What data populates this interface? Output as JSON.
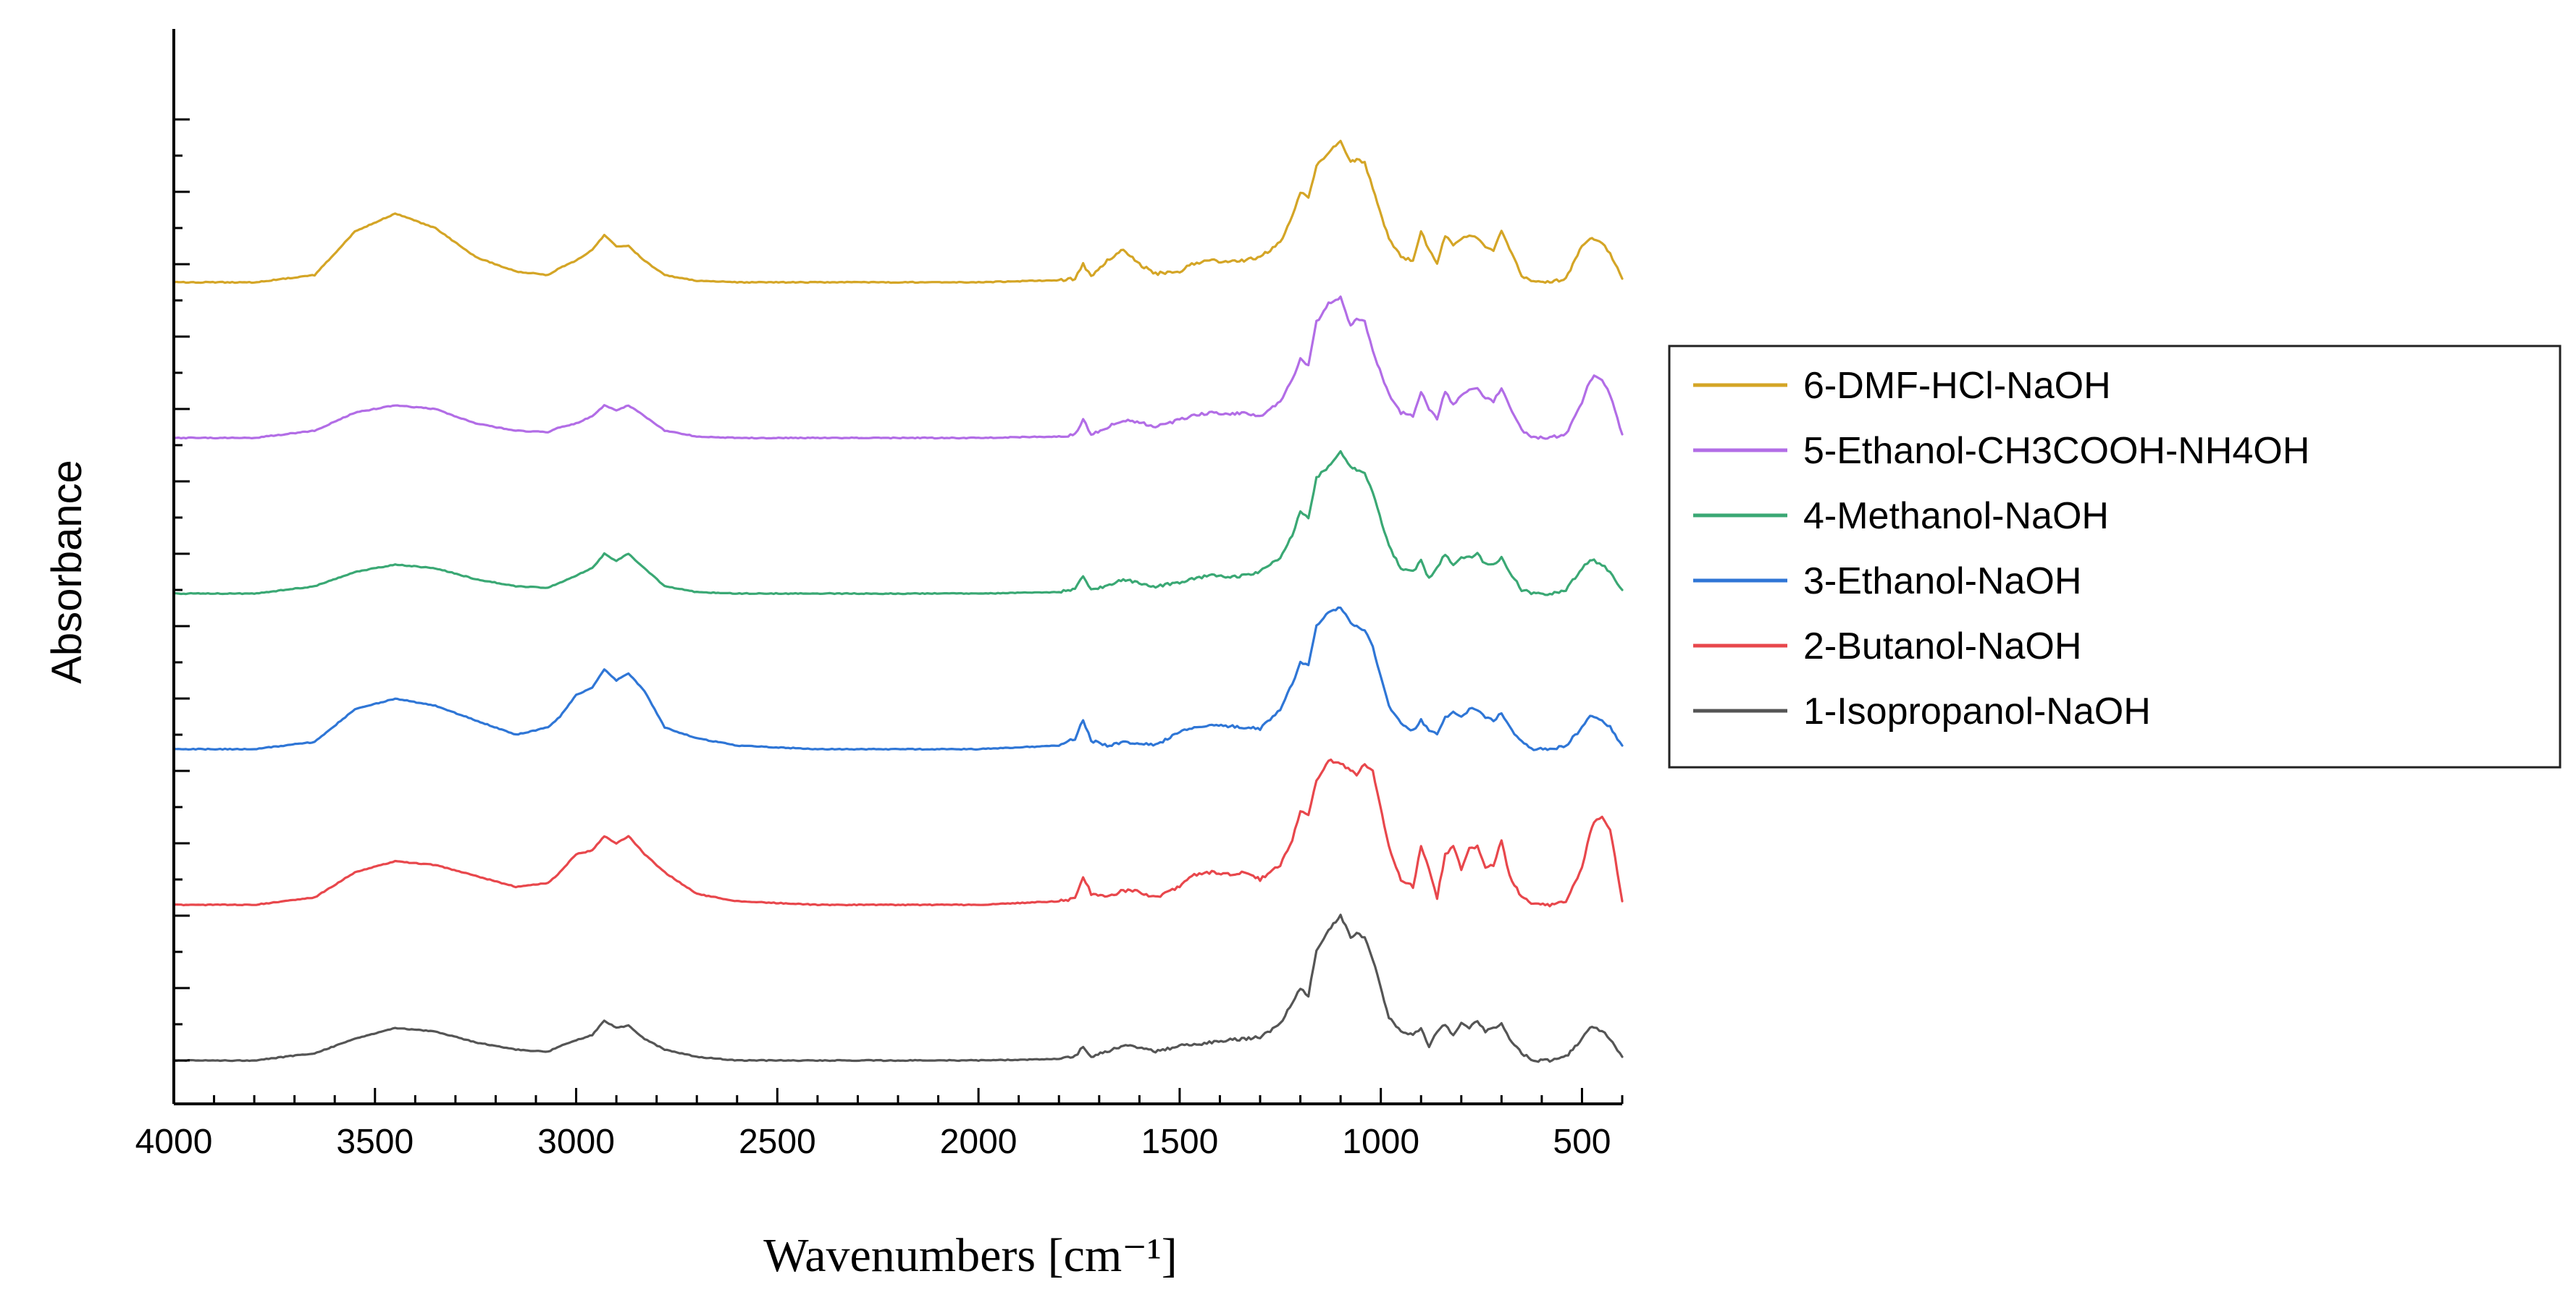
{
  "chart_data": {
    "type": "line",
    "title": "",
    "xlabel": "Wavenumbers [cm⁻¹]",
    "ylabel": "Absorbance",
    "xlim": [
      4000,
      400
    ],
    "x_reversed": true,
    "ylim": [
      0,
      13.3
    ],
    "y_tick_labels_shown": false,
    "x_ticks": [
      4000,
      3500,
      3000,
      2500,
      2000,
      1500,
      1000,
      500
    ],
    "x_tick_labels": [
      "4000",
      "3500",
      "3000",
      "2500",
      "2000",
      "1500",
      "1000",
      "500"
    ],
    "legend_position": "right",
    "peaks_cm1": [
      3450,
      2930,
      2870,
      1740,
      1640,
      1200,
      1100,
      1040,
      900,
      860,
      800,
      760,
      700,
      470
    ],
    "x": [
      4000,
      3800,
      3650,
      3550,
      3450,
      3350,
      3250,
      3150,
      3070,
      3040,
      3000,
      2960,
      2930,
      2900,
      2870,
      2830,
      2780,
      2700,
      2600,
      2400,
      2200,
      2000,
      1800,
      1760,
      1740,
      1720,
      1680,
      1640,
      1600,
      1560,
      1500,
      1470,
      1420,
      1380,
      1340,
      1300,
      1250,
      1220,
      1200,
      1180,
      1160,
      1130,
      1100,
      1075,
      1060,
      1040,
      1020,
      980,
      950,
      920,
      900,
      880,
      860,
      840,
      820,
      800,
      780,
      760,
      740,
      720,
      700,
      680,
      650,
      620,
      580,
      540,
      500,
      480,
      470,
      450,
      430,
      400
    ],
    "series": [
      {
        "name": "1-Isopropanol-NaOH",
        "color": "#555555",
        "offset": 0.0,
        "values": [
          0.0,
          0.0,
          0.1,
          0.3,
          0.45,
          0.4,
          0.25,
          0.15,
          0.12,
          0.2,
          0.28,
          0.35,
          0.55,
          0.45,
          0.48,
          0.3,
          0.15,
          0.05,
          0.0,
          0.0,
          0.0,
          0.0,
          0.02,
          0.05,
          0.2,
          0.06,
          0.12,
          0.2,
          0.18,
          0.12,
          0.2,
          0.22,
          0.25,
          0.28,
          0.3,
          0.32,
          0.5,
          0.8,
          1.0,
          0.9,
          1.5,
          1.8,
          2.0,
          1.7,
          1.75,
          1.7,
          1.4,
          0.6,
          0.4,
          0.35,
          0.45,
          0.2,
          0.4,
          0.5,
          0.35,
          0.5,
          0.45,
          0.55,
          0.4,
          0.45,
          0.5,
          0.3,
          0.1,
          0.0,
          0.0,
          0.05,
          0.3,
          0.45,
          0.45,
          0.4,
          0.3,
          0.05
        ]
      },
      {
        "name": "2-Butanol-NaOH",
        "color": "#e8474c",
        "offset": 2.15,
        "values": [
          0.0,
          0.0,
          0.1,
          0.45,
          0.6,
          0.55,
          0.4,
          0.25,
          0.3,
          0.45,
          0.7,
          0.75,
          0.95,
          0.85,
          0.95,
          0.7,
          0.45,
          0.15,
          0.05,
          0.0,
          0.0,
          0.0,
          0.05,
          0.08,
          0.4,
          0.15,
          0.1,
          0.2,
          0.18,
          0.1,
          0.25,
          0.4,
          0.45,
          0.42,
          0.45,
          0.35,
          0.55,
          0.9,
          1.3,
          1.25,
          1.7,
          2.0,
          1.95,
          1.85,
          1.8,
          1.95,
          1.85,
          0.8,
          0.35,
          0.25,
          0.8,
          0.5,
          0.1,
          0.7,
          0.8,
          0.5,
          0.8,
          0.8,
          0.5,
          0.55,
          0.9,
          0.4,
          0.1,
          0.0,
          0.0,
          0.05,
          0.5,
          1.0,
          1.15,
          1.2,
          1.05,
          0.05
        ]
      },
      {
        "name": "3-Ethanol-NaOH",
        "color": "#2f76d6",
        "offset": 4.3,
        "values": [
          0.0,
          0.0,
          0.1,
          0.55,
          0.7,
          0.6,
          0.4,
          0.2,
          0.3,
          0.45,
          0.75,
          0.85,
          1.1,
          0.95,
          1.05,
          0.8,
          0.3,
          0.15,
          0.05,
          0.0,
          0.0,
          0.0,
          0.05,
          0.15,
          0.4,
          0.12,
          0.05,
          0.1,
          0.08,
          0.05,
          0.25,
          0.3,
          0.35,
          0.32,
          0.3,
          0.28,
          0.55,
          0.9,
          1.2,
          1.15,
          1.7,
          1.9,
          1.95,
          1.75,
          1.7,
          1.65,
          1.4,
          0.6,
          0.35,
          0.25,
          0.4,
          0.25,
          0.2,
          0.45,
          0.5,
          0.45,
          0.55,
          0.55,
          0.45,
          0.4,
          0.5,
          0.3,
          0.1,
          0.0,
          0.0,
          0.05,
          0.3,
          0.45,
          0.45,
          0.4,
          0.3,
          0.05
        ]
      },
      {
        "name": "4-Methanol-NaOH",
        "color": "#3aa874",
        "offset": 6.45,
        "values": [
          0.0,
          0.0,
          0.1,
          0.3,
          0.4,
          0.35,
          0.2,
          0.1,
          0.08,
          0.15,
          0.25,
          0.35,
          0.55,
          0.45,
          0.55,
          0.35,
          0.1,
          0.02,
          0.0,
          0.0,
          0.0,
          0.0,
          0.02,
          0.05,
          0.25,
          0.05,
          0.1,
          0.2,
          0.15,
          0.1,
          0.15,
          0.2,
          0.25,
          0.22,
          0.25,
          0.3,
          0.5,
          0.8,
          1.15,
          1.05,
          1.6,
          1.75,
          1.95,
          1.75,
          1.7,
          1.65,
          1.4,
          0.65,
          0.35,
          0.3,
          0.45,
          0.2,
          0.35,
          0.55,
          0.4,
          0.5,
          0.5,
          0.55,
          0.4,
          0.4,
          0.5,
          0.3,
          0.05,
          0.0,
          0.0,
          0.05,
          0.35,
          0.45,
          0.45,
          0.4,
          0.3,
          0.05
        ]
      },
      {
        "name": "5-Ethanol-CH3COOH-NH4OH",
        "color": "#b26de6",
        "offset": 8.6,
        "values": [
          0.0,
          0.0,
          0.1,
          0.35,
          0.45,
          0.4,
          0.2,
          0.1,
          0.08,
          0.15,
          0.2,
          0.3,
          0.45,
          0.38,
          0.45,
          0.3,
          0.1,
          0.02,
          0.0,
          0.0,
          0.0,
          0.0,
          0.02,
          0.05,
          0.25,
          0.05,
          0.15,
          0.25,
          0.22,
          0.15,
          0.25,
          0.3,
          0.35,
          0.32,
          0.35,
          0.3,
          0.5,
          0.8,
          1.1,
          1.0,
          1.6,
          1.85,
          1.95,
          1.55,
          1.65,
          1.6,
          1.2,
          0.6,
          0.35,
          0.3,
          0.65,
          0.4,
          0.25,
          0.65,
          0.45,
          0.6,
          0.65,
          0.7,
          0.55,
          0.5,
          0.7,
          0.45,
          0.1,
          0.0,
          0.0,
          0.05,
          0.5,
          0.8,
          0.85,
          0.8,
          0.6,
          0.05
        ]
      },
      {
        "name": "6-DMF-HCl-NaOH",
        "color": "#d4a526",
        "offset": 10.75,
        "values": [
          0.0,
          0.0,
          0.1,
          0.7,
          0.95,
          0.75,
          0.35,
          0.15,
          0.1,
          0.2,
          0.3,
          0.45,
          0.65,
          0.5,
          0.5,
          0.3,
          0.1,
          0.02,
          0.0,
          0.0,
          0.0,
          0.0,
          0.03,
          0.05,
          0.25,
          0.08,
          0.3,
          0.45,
          0.25,
          0.12,
          0.15,
          0.25,
          0.3,
          0.28,
          0.3,
          0.35,
          0.55,
          0.9,
          1.25,
          1.15,
          1.6,
          1.8,
          1.95,
          1.65,
          1.7,
          1.65,
          1.3,
          0.6,
          0.35,
          0.3,
          0.7,
          0.45,
          0.25,
          0.65,
          0.5,
          0.6,
          0.65,
          0.6,
          0.5,
          0.45,
          0.7,
          0.45,
          0.1,
          0.0,
          0.0,
          0.05,
          0.5,
          0.6,
          0.6,
          0.55,
          0.4,
          0.05
        ]
      }
    ],
    "legend_order": [
      "6-DMF-HCl-NaOH",
      "5-Ethanol-CH3COOH-NH4OH",
      "4-Methanol-NaOH",
      "3-Ethanol-NaOH",
      "2-Butanol-NaOH",
      "1-Isopropanol-NaOH"
    ]
  }
}
